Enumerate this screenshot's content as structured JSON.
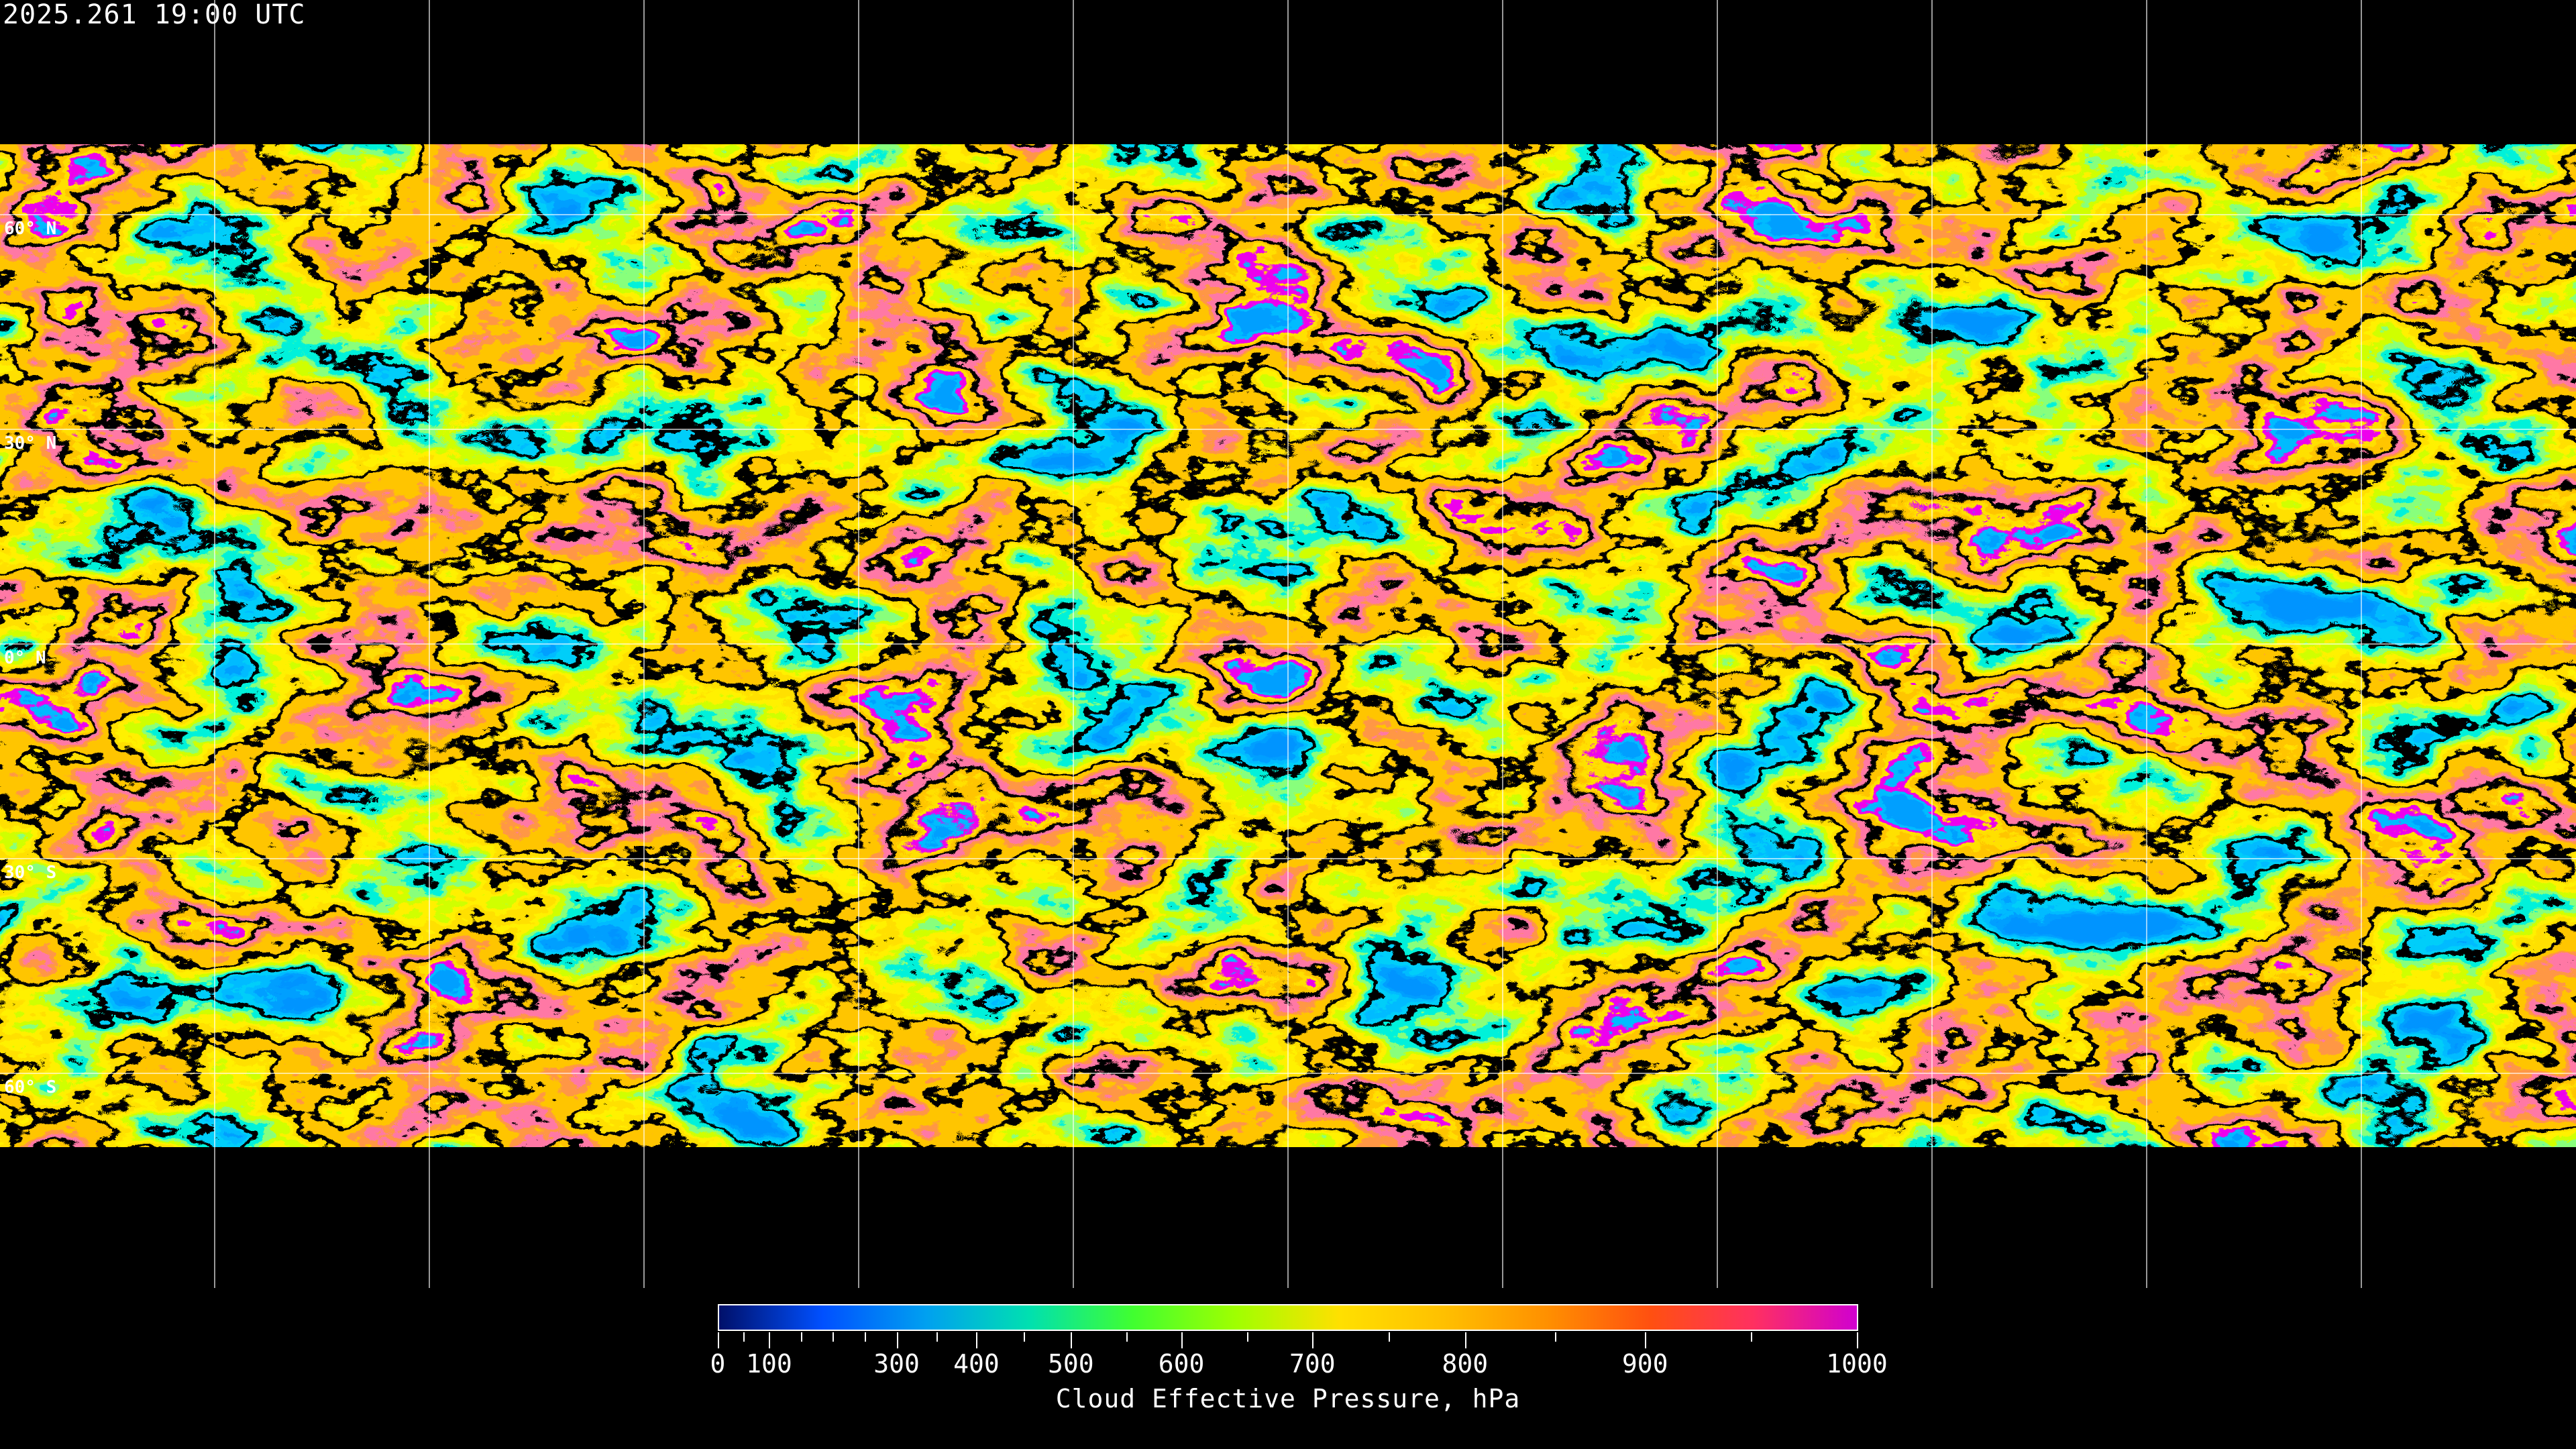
{
  "header": {
    "timestamp": "2025.261 19:00 UTC"
  },
  "map": {
    "projection": "equirectangular",
    "variable": "cloud effective pressure",
    "gridlines": "every 30 degrees",
    "lat_labels": [
      "60° N",
      "30° N",
      "0° N",
      "30° S",
      "60° S"
    ]
  },
  "colorbar": {
    "title": "Cloud Effective Pressure, hPa",
    "range": [
      0,
      1000
    ],
    "major_ticks": [
      "0",
      "100",
      "300",
      "400",
      "500",
      "600",
      "700",
      "800",
      "900",
      "1000"
    ],
    "colors": [
      "#00106a",
      "#0050ff",
      "#00a0f0",
      "#00e0b0",
      "#40ff30",
      "#a0ff00",
      "#ffe000",
      "#ffc000",
      "#ff9000",
      "#ff5010",
      "#ff3060",
      "#d000d0"
    ]
  }
}
